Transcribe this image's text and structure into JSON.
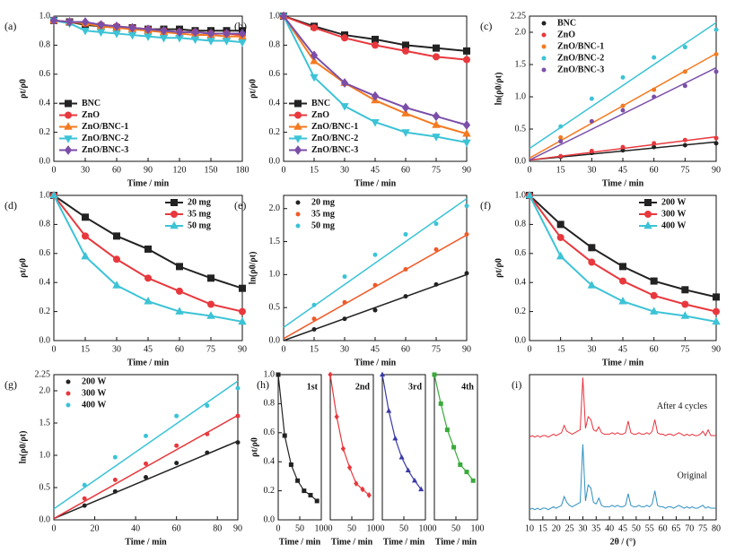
{
  "chart_data": [
    {
      "type": "line",
      "label": "(a)",
      "xlabel": "Time / min",
      "ylabel": "ρt/ρ0",
      "legend": "lower left",
      "x": [
        0,
        15,
        30,
        45,
        60,
        75,
        90,
        105,
        120,
        135,
        150,
        165,
        180
      ],
      "xlim": [
        0,
        180
      ],
      "xticks": [
        0,
        30,
        60,
        90,
        120,
        150,
        180
      ],
      "ylim": [
        0,
        1
      ],
      "yticks": [
        {
          "value": 0,
          "label": "0.0"
        },
        0.2,
        0.4,
        0.6,
        0.8,
        {
          "value": 1,
          "label": "1.0"
        }
      ],
      "series": [
        {
          "name": "BNC",
          "color": "#222222",
          "marker": "square",
          "values": [
            0.97,
            0.96,
            0.94,
            0.93,
            0.92,
            0.92,
            0.91,
            0.91,
            0.91,
            0.9,
            0.9,
            0.9,
            0.9
          ]
        },
        {
          "name": "ZnO",
          "color": "#e8383d",
          "marker": "circle",
          "values": [
            0.97,
            0.96,
            0.95,
            0.94,
            0.93,
            0.92,
            0.91,
            0.9,
            0.89,
            0.89,
            0.88,
            0.88,
            0.87
          ]
        },
        {
          "name": "ZnO/BNC-1",
          "color": "#f47a20",
          "marker": "triangle",
          "values": [
            0.97,
            0.96,
            0.95,
            0.93,
            0.92,
            0.91,
            0.9,
            0.89,
            0.88,
            0.87,
            0.87,
            0.86,
            0.86
          ]
        },
        {
          "name": "ZnO/BNC-2",
          "color": "#3cc3d6",
          "marker": "triangle-down",
          "values": [
            0.97,
            0.95,
            0.9,
            0.89,
            0.88,
            0.87,
            0.86,
            0.85,
            0.85,
            0.84,
            0.83,
            0.83,
            0.82
          ]
        },
        {
          "name": "ZnO/BNC-3",
          "color": "#7b4fa8",
          "marker": "diamond",
          "values": [
            0.97,
            0.96,
            0.96,
            0.94,
            0.93,
            0.92,
            0.91,
            0.9,
            0.89,
            0.89,
            0.88,
            0.88,
            0.88
          ]
        }
      ]
    },
    {
      "type": "line",
      "label": "(b)",
      "xlabel": "Time / min",
      "ylabel": "ρt/ρ0",
      "legend": "lower left",
      "x": [
        0,
        15,
        30,
        45,
        60,
        75,
        90
      ],
      "xlim": [
        0,
        90
      ],
      "xticks": [
        0,
        15,
        30,
        45,
        60,
        75,
        90
      ],
      "ylim": [
        0,
        1
      ],
      "yticks": [
        {
          "value": 0,
          "label": "0.0"
        },
        0.2,
        0.4,
        0.6,
        0.8,
        {
          "value": 1,
          "label": "1.0"
        }
      ],
      "series": [
        {
          "name": "BNC",
          "color": "#222222",
          "marker": "square",
          "values": [
            1,
            0.93,
            0.87,
            0.84,
            0.8,
            0.78,
            0.76
          ]
        },
        {
          "name": "ZnO",
          "color": "#e8383d",
          "marker": "circle",
          "values": [
            1,
            0.92,
            0.85,
            0.8,
            0.76,
            0.72,
            0.7
          ]
        },
        {
          "name": "ZnO/BNC-1",
          "color": "#f47a20",
          "marker": "triangle",
          "values": [
            1,
            0.69,
            0.54,
            0.42,
            0.33,
            0.25,
            0.19
          ]
        },
        {
          "name": "ZnO/BNC-2",
          "color": "#3cc3d6",
          "marker": "triangle-down",
          "values": [
            1,
            0.58,
            0.38,
            0.27,
            0.2,
            0.17,
            0.13
          ]
        },
        {
          "name": "ZnO/BNC-3",
          "color": "#7b4fa8",
          "marker": "diamond",
          "values": [
            1,
            0.73,
            0.54,
            0.45,
            0.37,
            0.31,
            0.25
          ]
        }
      ]
    },
    {
      "type": "scatter_fit",
      "label": "(c)",
      "xlabel": "Time / min",
      "ylabel": "ln(ρ0/ρt)",
      "legend": "upper left",
      "x": [
        15,
        30,
        45,
        60,
        75,
        90
      ],
      "fit_x": [
        0,
        90
      ],
      "xlim": [
        0,
        90
      ],
      "xticks": [
        0,
        15,
        30,
        45,
        60,
        75,
        90
      ],
      "ylim": [
        0,
        2.25
      ],
      "yticks": [
        {
          "value": 0,
          "label": "0.0"
        },
        0.5,
        {
          "value": 1,
          "label": "1.0"
        },
        1.5,
        {
          "value": 2,
          "label": "2.0"
        },
        2.25
      ],
      "series": [
        {
          "name": "BNC",
          "color": "#222222",
          "values": [
            0.07,
            0.13,
            0.17,
            0.22,
            0.25,
            0.28
          ],
          "fit": [
            0.02,
            0.3
          ]
        },
        {
          "name": "ZnO",
          "color": "#e8383d",
          "values": [
            0.08,
            0.16,
            0.22,
            0.28,
            0.33,
            0.36
          ],
          "fit": [
            0.02,
            0.38
          ]
        },
        {
          "name": "ZnO/BNC-1",
          "color": "#f47a20",
          "values": [
            0.37,
            0.62,
            0.86,
            1.11,
            1.39,
            1.66
          ],
          "fit": [
            0.05,
            1.67
          ]
        },
        {
          "name": "ZnO/BNC-2",
          "color": "#3cc3d6",
          "values": [
            0.54,
            0.97,
            1.3,
            1.61,
            1.77,
            2.04
          ],
          "fit": [
            0.2,
            2.15
          ]
        },
        {
          "name": "ZnO/BNC-3",
          "color": "#7b4fa8",
          "values": [
            0.31,
            0.62,
            0.79,
            1.0,
            1.17,
            1.39
          ],
          "fit": [
            0.02,
            1.45
          ]
        }
      ]
    },
    {
      "type": "line",
      "label": "(d)",
      "xlabel": "Time / min",
      "ylabel": "ρt/ρ0",
      "legend": "upper right",
      "x": [
        0,
        15,
        30,
        45,
        60,
        75,
        90
      ],
      "xlim": [
        0,
        90
      ],
      "xticks": [
        0,
        15,
        30,
        45,
        60,
        75,
        90
      ],
      "ylim": [
        0,
        1
      ],
      "yticks": [
        {
          "value": 0,
          "label": "0.0"
        },
        0.2,
        0.4,
        0.6,
        0.8,
        {
          "value": 1,
          "label": "1.0"
        }
      ],
      "series": [
        {
          "name": "20 mg",
          "color": "#222222",
          "marker": "square",
          "values": [
            1,
            0.85,
            0.72,
            0.63,
            0.51,
            0.43,
            0.36
          ]
        },
        {
          "name": "35 mg",
          "color": "#e8383d",
          "marker": "circle",
          "values": [
            1,
            0.72,
            0.56,
            0.43,
            0.34,
            0.25,
            0.2
          ]
        },
        {
          "name": "50 mg",
          "color": "#3cc3d6",
          "marker": "triangle",
          "values": [
            1,
            0.58,
            0.38,
            0.27,
            0.2,
            0.17,
            0.13
          ]
        }
      ]
    },
    {
      "type": "scatter_fit",
      "label": "(e)",
      "xlabel": "Time / min",
      "ylabel": "ln(ρ0/ρt)",
      "legend": "upper left",
      "x": [
        15,
        30,
        45,
        60,
        75,
        90
      ],
      "fit_x": [
        0,
        90
      ],
      "xlim": [
        0,
        90
      ],
      "xticks": [
        0,
        15,
        30,
        45,
        60,
        75,
        90
      ],
      "ylim": [
        0,
        2.2
      ],
      "yticks": [
        {
          "value": 0,
          "label": "0.0"
        },
        0.5,
        {
          "value": 1,
          "label": "1.0"
        },
        1.5,
        {
          "value": 2,
          "label": "2.0"
        }
      ],
      "series": [
        {
          "name": "20 mg",
          "color": "#222222",
          "values": [
            0.17,
            0.33,
            0.46,
            0.67,
            0.85,
            1.02
          ],
          "fit": [
            0,
            1.0
          ]
        },
        {
          "name": "35 mg",
          "color": "#f05a28",
          "values": [
            0.33,
            0.58,
            0.84,
            1.08,
            1.38,
            1.61
          ],
          "fit": [
            0.03,
            1.6
          ]
        },
        {
          "name": "50 mg",
          "color": "#3cc3d6",
          "values": [
            0.54,
            0.97,
            1.3,
            1.61,
            1.77,
            2.04
          ],
          "fit": [
            0.2,
            2.15
          ]
        }
      ]
    },
    {
      "type": "line",
      "label": "(f)",
      "xlabel": "Time / min",
      "ylabel": "ρt/ρ0",
      "legend": "upper right",
      "x": [
        0,
        15,
        30,
        45,
        60,
        75,
        90
      ],
      "xlim": [
        0,
        90
      ],
      "xticks": [
        0,
        15,
        30,
        45,
        60,
        75,
        90
      ],
      "ylim": [
        0,
        1
      ],
      "yticks": [
        {
          "value": 0,
          "label": "0.0"
        },
        0.2,
        0.4,
        0.6,
        0.8,
        {
          "value": 1,
          "label": "1.0"
        }
      ],
      "series": [
        {
          "name": "200 W",
          "color": "#222222",
          "marker": "square",
          "values": [
            1,
            0.8,
            0.64,
            0.51,
            0.41,
            0.35,
            0.3
          ]
        },
        {
          "name": "300 W",
          "color": "#e8383d",
          "marker": "circle",
          "values": [
            1,
            0.71,
            0.54,
            0.41,
            0.31,
            0.25,
            0.2
          ]
        },
        {
          "name": "400 W",
          "color": "#3cc3d6",
          "marker": "triangle",
          "values": [
            1,
            0.58,
            0.38,
            0.27,
            0.2,
            0.17,
            0.13
          ]
        }
      ]
    },
    {
      "type": "scatter_fit",
      "label": "(g)",
      "xlabel": "Time / min",
      "ylabel": "ln(ρ0/ρt)",
      "legend": "upper left",
      "x": [
        15,
        30,
        45,
        60,
        75,
        90
      ],
      "fit_x": [
        0,
        90
      ],
      "xlim": [
        0,
        90
      ],
      "xticks": [
        0,
        20,
        40,
        60,
        80,
        90
      ],
      "ylim": [
        0,
        2.25
      ],
      "yticks": [
        {
          "value": 0,
          "label": "0.0"
        },
        0.5,
        {
          "value": 1,
          "label": "1.0"
        },
        1.5,
        {
          "value": 2,
          "label": "2.0"
        },
        2.25
      ],
      "series": [
        {
          "name": "200 W",
          "color": "#222222",
          "values": [
            0.22,
            0.44,
            0.66,
            0.88,
            1.04,
            1.2
          ],
          "fit": [
            0.02,
            1.22
          ]
        },
        {
          "name": "300 W",
          "color": "#e8383d",
          "values": [
            0.33,
            0.62,
            0.87,
            1.15,
            1.33,
            1.61
          ],
          "fit": [
            0.02,
            1.62
          ]
        },
        {
          "name": "400 W",
          "color": "#3cc3d6",
          "values": [
            0.54,
            0.97,
            1.3,
            1.61,
            1.77,
            2.04
          ],
          "fit": [
            0.17,
            2.15
          ]
        }
      ]
    },
    {
      "type": "cycles",
      "label": "(h)",
      "xlabel": "Time / min",
      "ylabel": "ρt/ρ0",
      "x": [
        0,
        15,
        30,
        45,
        60,
        75,
        90
      ],
      "xlim": [
        0,
        100
      ],
      "xticks": [
        0,
        50,
        100
      ],
      "ylim": [
        0,
        1
      ],
      "yticks": [
        {
          "value": 0,
          "label": "0.0"
        },
        0.2,
        0.4,
        0.6,
        0.8,
        {
          "value": 1,
          "label": "1.0"
        }
      ],
      "series": [
        {
          "name": "1st",
          "color": "#222222",
          "marker": "square",
          "values": [
            1,
            0.58,
            0.38,
            0.27,
            0.2,
            0.17,
            0.13
          ]
        },
        {
          "name": "2nd",
          "color": "#e8383d",
          "marker": "diamond",
          "values": [
            1,
            0.71,
            0.49,
            0.36,
            0.25,
            0.21,
            0.17
          ]
        },
        {
          "name": "3rd",
          "color": "#3a3aa8",
          "marker": "triangle",
          "values": [
            1,
            0.75,
            0.56,
            0.43,
            0.34,
            0.27,
            0.21
          ]
        },
        {
          "name": "4th",
          "color": "#3aaa3a",
          "marker": "square",
          "values": [
            1,
            0.8,
            0.62,
            0.5,
            0.38,
            0.33,
            0.27
          ]
        }
      ]
    },
    {
      "type": "xrd",
      "label": "(i)",
      "xlabel": "2θ / (°)",
      "annotations": [
        "After 4 cycles",
        "Original"
      ],
      "x": [
        10,
        11,
        12,
        13,
        14,
        15,
        16,
        17,
        18,
        19,
        20,
        21,
        22,
        23,
        24,
        25,
        26,
        27,
        28,
        29,
        30,
        31,
        32,
        33,
        34,
        35,
        36,
        37,
        38,
        39,
        40,
        41,
        42,
        43,
        44,
        45,
        46,
        47,
        48,
        49,
        50,
        51,
        52,
        53,
        54,
        55,
        56,
        57,
        58,
        59,
        60,
        61,
        62,
        63,
        64,
        65,
        66,
        67,
        68,
        69,
        70,
        71,
        72,
        73,
        74,
        75,
        76,
        77,
        78,
        79,
        80
      ],
      "xlim": [
        10,
        80
      ],
      "xticks": [
        10,
        15,
        20,
        25,
        30,
        35,
        40,
        45,
        50,
        55,
        60,
        65,
        70,
        75,
        80
      ],
      "ylim": [
        0,
        100
      ],
      "series": [
        {
          "color": "#e8323c",
          "values": [
            57,
            58,
            57,
            58,
            57,
            58,
            58,
            57,
            58,
            59,
            58,
            59,
            60,
            65,
            61,
            60,
            59,
            60,
            61,
            62,
            98,
            63,
            71,
            69,
            62,
            61,
            64,
            60,
            59,
            59,
            59,
            60,
            59,
            60,
            59,
            59,
            60,
            68,
            60,
            59,
            59,
            60,
            59,
            59,
            60,
            59,
            61,
            69,
            60,
            59,
            59,
            58,
            59,
            59,
            58,
            59,
            60,
            59,
            58,
            59,
            58,
            59,
            58,
            58,
            59,
            61,
            58,
            62,
            58,
            58,
            58
          ]
        },
        {
          "color": "#2e8fc0",
          "values": [
            7,
            8,
            7,
            8,
            7,
            8,
            8,
            7,
            8,
            9,
            8,
            9,
            10,
            16,
            12,
            10,
            9,
            10,
            11,
            12,
            52,
            13,
            24,
            22,
            12,
            11,
            15,
            10,
            9,
            9,
            9,
            10,
            9,
            10,
            9,
            9,
            10,
            18,
            10,
            9,
            9,
            10,
            9,
            9,
            10,
            9,
            11,
            20,
            10,
            9,
            9,
            8,
            9,
            9,
            8,
            9,
            10,
            9,
            8,
            9,
            8,
            9,
            8,
            8,
            9,
            10,
            8,
            9,
            8,
            8,
            8
          ]
        }
      ]
    }
  ]
}
